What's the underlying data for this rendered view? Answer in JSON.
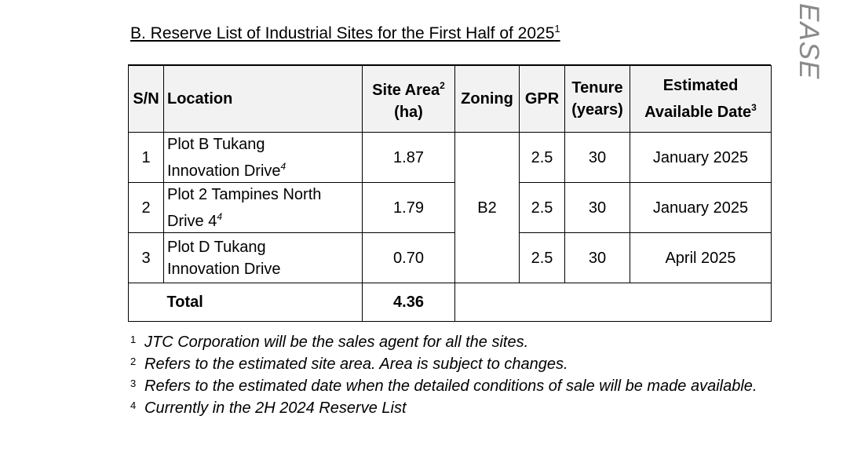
{
  "title": {
    "text": "B.  Reserve List of Industrial Sites for the First Half of 2025",
    "ref": "1"
  },
  "watermark": "EASE",
  "table": {
    "headers": {
      "sn": "S/N",
      "location": "Location",
      "site_area_line1": "Site Area",
      "site_area_ref": "2",
      "site_area_line2": "(ha)",
      "zoning": "Zoning",
      "gpr": "GPR",
      "tenure_line1": "Tenure",
      "tenure_line2": "(years)",
      "date_line1": "Estimated",
      "date_line2": "Available Date",
      "date_ref": "3"
    },
    "rows": [
      {
        "sn": "1",
        "location_line1": "Plot B Tukang",
        "location_line2": "Innovation Drive",
        "location_ref": "4",
        "site_area": "1.87",
        "gpr": "2.5",
        "tenure": "30",
        "date": "January 2025"
      },
      {
        "sn": "2",
        "location_line1": "Plot 2 Tampines North",
        "location_line2": "Drive 4",
        "location_ref": "4",
        "site_area": "1.79",
        "gpr": "2.5",
        "tenure": "30",
        "date": "January 2025"
      },
      {
        "sn": "3",
        "location_line1": "Plot D Tukang",
        "location_line2": "Innovation Drive",
        "location_ref": "",
        "site_area": "0.70",
        "gpr": "2.5",
        "tenure": "30",
        "date": "April 2025"
      }
    ],
    "zoning_value": "B2",
    "total": {
      "label": "Total",
      "site_area": "4.36"
    }
  },
  "notes": [
    {
      "mark": "1",
      "text": "JTC Corporation will be the sales agent for all the sites."
    },
    {
      "mark": "2",
      "text": "Refers to the estimated site area. Area is subject to changes."
    },
    {
      "mark": "3",
      "text": "Refers to the estimated date when the detailed conditions of sale will be made available."
    },
    {
      "mark": "4",
      "text": "Currently in the 2H 2024 Reserve List"
    }
  ]
}
